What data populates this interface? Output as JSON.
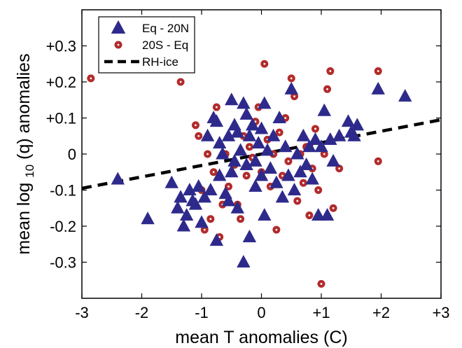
{
  "chart_data": {
    "type": "scatter",
    "xlabel": "mean T anomalies  (C)",
    "ylabel_main": "mean log",
    "ylabel_sub": "10",
    "ylabel_rest": "(q) anomalies",
    "xlim": [
      -3,
      3
    ],
    "ylim": [
      -0.4,
      0.4
    ],
    "grid": false,
    "legend_position": "top-left",
    "x_ticks": [
      {
        "value": -3,
        "label": "-3"
      },
      {
        "value": -2,
        "label": "-2"
      },
      {
        "value": -1,
        "label": "-1"
      },
      {
        "value": 0,
        "label": "0"
      },
      {
        "value": 1,
        "label": "+1"
      },
      {
        "value": 2,
        "label": "+2"
      },
      {
        "value": 3,
        "label": "+3"
      }
    ],
    "y_ticks": [
      {
        "value": 0.3,
        "label": "+0.3"
      },
      {
        "value": 0.2,
        "label": "+0.2"
      },
      {
        "value": 0.1,
        "label": "+0.1"
      },
      {
        "value": 0,
        "label": "0"
      },
      {
        "value": -0.1,
        "label": "-0.1"
      },
      {
        "value": -0.2,
        "label": "-0.2"
      },
      {
        "value": -0.3,
        "label": "-0.3"
      }
    ],
    "series": [
      {
        "name": "Eq - 20N",
        "marker": "triangle",
        "color": "#2e2a8c",
        "points": [
          [
            -2.4,
            -0.07
          ],
          [
            -1.9,
            -0.18
          ],
          [
            -1.5,
            -0.08
          ],
          [
            -1.4,
            -0.15
          ],
          [
            -1.35,
            -0.12
          ],
          [
            -1.3,
            -0.2
          ],
          [
            -1.25,
            -0.17
          ],
          [
            -1.2,
            -0.1
          ],
          [
            -1.15,
            -0.13
          ],
          [
            -1.1,
            -0.14
          ],
          [
            -1.05,
            -0.09
          ],
          [
            -1.0,
            -0.19
          ],
          [
            -0.95,
            -0.12
          ],
          [
            -0.9,
            0.05
          ],
          [
            -0.85,
            -0.1
          ],
          [
            -0.8,
            0.1
          ],
          [
            -0.75,
            0.09
          ],
          [
            -0.75,
            -0.24
          ],
          [
            -0.7,
            0.03
          ],
          [
            -0.7,
            -0.06
          ],
          [
            -0.65,
            0.0
          ],
          [
            -0.6,
            -0.11
          ],
          [
            -0.55,
            0.05
          ],
          [
            -0.55,
            -0.13
          ],
          [
            -0.5,
            0.15
          ],
          [
            -0.5,
            -0.05
          ],
          [
            -0.45,
            0.08
          ],
          [
            -0.45,
            -0.02
          ],
          [
            -0.4,
            0.06
          ],
          [
            -0.4,
            -0.15
          ],
          [
            -0.35,
            0.01
          ],
          [
            -0.3,
            0.14
          ],
          [
            -0.3,
            -0.3
          ],
          [
            -0.25,
            0.11
          ],
          [
            -0.25,
            -0.03
          ],
          [
            -0.2,
            -0.23
          ],
          [
            -0.2,
            0.05
          ],
          [
            -0.15,
            0.08
          ],
          [
            -0.1,
            -0.02
          ],
          [
            -0.1,
            -0.09
          ],
          [
            -0.05,
            0.03
          ],
          [
            0.0,
            0.07
          ],
          [
            0.0,
            -0.06
          ],
          [
            0.05,
            0.14
          ],
          [
            0.05,
            -0.17
          ],
          [
            0.1,
            0.01
          ],
          [
            0.15,
            -0.04
          ],
          [
            0.2,
            0.05
          ],
          [
            0.25,
            -0.08
          ],
          [
            0.3,
            0.1
          ],
          [
            0.35,
            -0.12
          ],
          [
            0.4,
            0.02
          ],
          [
            0.45,
            -0.06
          ],
          [
            0.5,
            0.18
          ],
          [
            0.55,
            -0.1
          ],
          [
            0.6,
            0.0
          ],
          [
            0.65,
            -0.05
          ],
          [
            0.7,
            0.05
          ],
          [
            0.75,
            -0.03
          ],
          [
            0.8,
            0.02
          ],
          [
            0.85,
            -0.07
          ],
          [
            0.9,
            0.04
          ],
          [
            0.95,
            -0.17
          ],
          [
            1.0,
            0.02
          ],
          [
            1.05,
            0.12
          ],
          [
            1.1,
            -0.17
          ],
          [
            1.15,
            0.04
          ],
          [
            1.2,
            -0.02
          ],
          [
            1.3,
            0.05
          ],
          [
            1.45,
            0.09
          ],
          [
            1.5,
            0.06
          ],
          [
            1.55,
            0.05
          ],
          [
            1.6,
            0.08
          ],
          [
            1.95,
            0.18
          ],
          [
            2.4,
            0.16
          ]
        ]
      },
      {
        "name": "20S - Eq",
        "marker": "circle",
        "color": "#b22b2b",
        "points": [
          [
            -2.85,
            0.21
          ],
          [
            -1.35,
            0.2
          ],
          [
            -1.1,
            0.08
          ],
          [
            -1.05,
            0.05
          ],
          [
            -1.0,
            -0.1
          ],
          [
            -0.95,
            -0.21
          ],
          [
            -0.9,
            0.0
          ],
          [
            -0.85,
            -0.18
          ],
          [
            -0.8,
            -0.05
          ],
          [
            -0.75,
            0.13
          ],
          [
            -0.7,
            -0.23
          ],
          [
            -0.65,
            -0.14
          ],
          [
            -0.6,
            0.0
          ],
          [
            -0.55,
            -0.09
          ],
          [
            -0.45,
            -0.03
          ],
          [
            -0.4,
            -0.14
          ],
          [
            -0.35,
            -0.18
          ],
          [
            -0.3,
            0.05
          ],
          [
            -0.25,
            -0.06
          ],
          [
            -0.2,
            0.02
          ],
          [
            -0.15,
            -0.01
          ],
          [
            -0.1,
            0.09
          ],
          [
            -0.05,
            0.13
          ],
          [
            0.0,
            -0.05
          ],
          [
            0.05,
            0.25
          ],
          [
            0.1,
            0.04
          ],
          [
            0.15,
            -0.09
          ],
          [
            0.2,
            0.0
          ],
          [
            0.25,
            -0.21
          ],
          [
            0.3,
            0.06
          ],
          [
            0.35,
            -0.06
          ],
          [
            0.4,
            0.1
          ],
          [
            0.45,
            -0.02
          ],
          [
            0.5,
            0.21
          ],
          [
            0.55,
            0.16
          ],
          [
            0.6,
            -0.13
          ],
          [
            0.65,
            0.0
          ],
          [
            0.7,
            -0.08
          ],
          [
            0.75,
            0.02
          ],
          [
            0.8,
            -0.17
          ],
          [
            0.85,
            -0.04
          ],
          [
            0.9,
            0.07
          ],
          [
            0.95,
            -0.1
          ],
          [
            1.0,
            -0.36
          ],
          [
            1.05,
            0.0
          ],
          [
            1.1,
            0.18
          ],
          [
            1.15,
            0.23
          ],
          [
            1.2,
            -0.15
          ],
          [
            1.3,
            -0.04
          ],
          [
            1.95,
            0.23
          ],
          [
            1.95,
            -0.02
          ]
        ]
      },
      {
        "name": "RH-ice",
        "marker": "dashed-line",
        "color": "#000000",
        "points": [
          [
            -3,
            -0.095
          ],
          [
            3,
            0.095
          ]
        ]
      }
    ],
    "legend": [
      {
        "label": "Eq - 20N",
        "marker": "triangle"
      },
      {
        "label": "20S - Eq",
        "marker": "circle"
      },
      {
        "label": "RH-ice",
        "marker": "dashed-line"
      }
    ]
  }
}
